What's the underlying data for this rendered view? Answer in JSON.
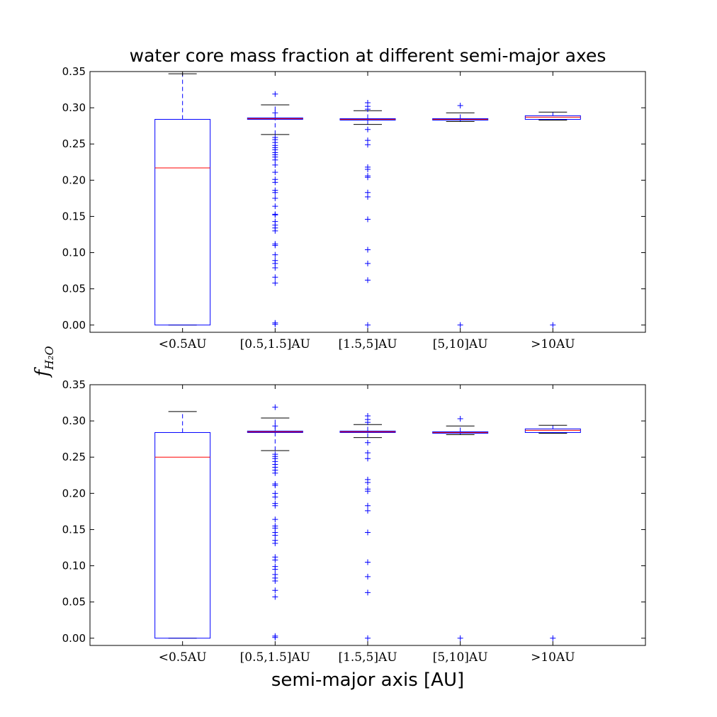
{
  "figure": {
    "title": "water core mass fraction at different semi-major axes",
    "xlabel": "semi-major axis [AU]",
    "ylabel_main": "f",
    "ylabel_sub": "H₂O",
    "colors": {
      "box": "#0000ff",
      "median": "#ff0000",
      "whisker_cap": "#000000",
      "outlier": "#0000ff",
      "frame": "#000000"
    }
  },
  "chart_data": [
    {
      "type": "box",
      "panel": "top",
      "categories": [
        "<0.5AU",
        "[0.5,1.5]AU",
        "[1.5,5]AU",
        "[5,10]AU",
        ">10AU"
      ],
      "ylim": [
        -0.01,
        0.35
      ],
      "yticks": [
        "0.00",
        "0.05",
        "0.10",
        "0.15",
        "0.20",
        "0.25",
        "0.30",
        "0.35"
      ],
      "ytick_values": [
        0,
        0.05,
        0.1,
        0.15,
        0.2,
        0.25,
        0.3,
        0.35
      ],
      "boxes": [
        {
          "q1": 0.0,
          "median": 0.217,
          "q3": 0.284,
          "whisker_low": 0.0,
          "whisker_high": 0.347,
          "outliers": []
        },
        {
          "q1": 0.284,
          "median": 0.285,
          "q3": 0.286,
          "whisker_low": 0.263,
          "whisker_high": 0.304,
          "outliers": [
            0.319,
            0.293,
            0.259,
            0.256,
            0.252,
            0.248,
            0.245,
            0.242,
            0.238,
            0.235,
            0.232,
            0.228,
            0.221,
            0.211,
            0.201,
            0.197,
            0.186,
            0.183,
            0.175,
            0.164,
            0.153,
            0.152,
            0.143,
            0.138,
            0.134,
            0.13,
            0.112,
            0.11,
            0.097,
            0.089,
            0.085,
            0.079,
            0.066,
            0.058,
            0.003,
            0.001
          ]
        },
        {
          "q1": 0.283,
          "median": 0.284,
          "q3": 0.285,
          "whisker_low": 0.277,
          "whisker_high": 0.296,
          "outliers": [
            0.307,
            0.302,
            0.298,
            0.27,
            0.255,
            0.249,
            0.218,
            0.215,
            0.206,
            0.204,
            0.183,
            0.177,
            0.146,
            0.104,
            0.085,
            0.062,
            0.0
          ]
        },
        {
          "q1": 0.283,
          "median": 0.284,
          "q3": 0.285,
          "whisker_low": 0.281,
          "whisker_high": 0.293,
          "outliers": [
            0.303,
            0.0
          ]
        },
        {
          "q1": 0.284,
          "median": 0.287,
          "q3": 0.289,
          "whisker_low": 0.283,
          "whisker_high": 0.294,
          "outliers": [
            0.0
          ]
        }
      ]
    },
    {
      "type": "box",
      "panel": "bottom",
      "categories": [
        "<0.5AU",
        "[0.5,1.5]AU",
        "[1.5,5]AU",
        "[5,10]AU",
        ">10AU"
      ],
      "ylim": [
        -0.01,
        0.35
      ],
      "yticks": [
        "0.00",
        "0.05",
        "0.10",
        "0.15",
        "0.20",
        "0.25",
        "0.30",
        "0.35"
      ],
      "ytick_values": [
        0,
        0.05,
        0.1,
        0.15,
        0.2,
        0.25,
        0.3,
        0.35
      ],
      "boxes": [
        {
          "q1": 0.0,
          "median": 0.25,
          "q3": 0.284,
          "whisker_low": 0.0,
          "whisker_high": 0.313,
          "outliers": []
        },
        {
          "q1": 0.284,
          "median": 0.285,
          "q3": 0.286,
          "whisker_low": 0.259,
          "whisker_high": 0.304,
          "outliers": [
            0.319,
            0.293,
            0.254,
            0.251,
            0.248,
            0.244,
            0.24,
            0.236,
            0.232,
            0.228,
            0.213,
            0.211,
            0.2,
            0.195,
            0.186,
            0.183,
            0.164,
            0.155,
            0.152,
            0.146,
            0.142,
            0.135,
            0.131,
            0.112,
            0.108,
            0.099,
            0.095,
            0.088,
            0.083,
            0.079,
            0.066,
            0.057,
            0.003,
            0.001
          ]
        },
        {
          "q1": 0.284,
          "median": 0.285,
          "q3": 0.286,
          "whisker_low": 0.277,
          "whisker_high": 0.295,
          "outliers": [
            0.307,
            0.302,
            0.298,
            0.27,
            0.256,
            0.248,
            0.219,
            0.215,
            0.206,
            0.203,
            0.183,
            0.176,
            0.146,
            0.105,
            0.085,
            0.063,
            0.0
          ]
        },
        {
          "q1": 0.283,
          "median": 0.284,
          "q3": 0.285,
          "whisker_low": 0.281,
          "whisker_high": 0.293,
          "outliers": [
            0.303,
            0.0
          ]
        },
        {
          "q1": 0.284,
          "median": 0.287,
          "q3": 0.289,
          "whisker_low": 0.283,
          "whisker_high": 0.294,
          "outliers": [
            0.0
          ]
        }
      ]
    }
  ]
}
